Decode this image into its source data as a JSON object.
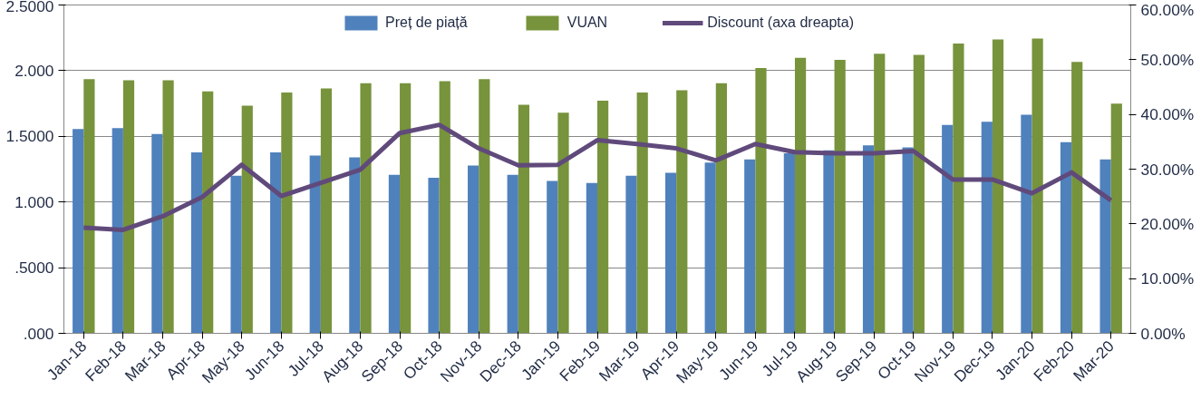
{
  "chart_data": {
    "type": "bar",
    "categories": [
      "Jan-18",
      "Feb-18",
      "Mar-18",
      "Apr-18",
      "May-18",
      "Jun-18",
      "Jul-18",
      "Aug-18",
      "Sep-18",
      "Oct-18",
      "Nov-18",
      "Dec-18",
      "Jan-19",
      "Feb-19",
      "Mar-19",
      "Apr-19",
      "May-19",
      "Jun-19",
      "Jul-19",
      "Aug-19",
      "Sep-19",
      "Oct-19",
      "Nov-19",
      "Dec-19",
      "Jan-20",
      "Feb-20",
      "Mar-20"
    ],
    "series": [
      {
        "name": "Preț de piață",
        "color": "#4f81bd",
        "values": [
          1.556,
          1.563,
          1.517,
          1.378,
          1.2,
          1.378,
          1.354,
          1.339,
          1.207,
          1.184,
          1.277,
          1.207,
          1.161,
          1.145,
          1.2,
          1.223,
          1.3,
          1.324,
          1.37,
          1.393,
          1.432,
          1.416,
          1.587,
          1.61,
          1.664,
          1.455,
          1.324
        ]
      },
      {
        "name": "VUAN",
        "color": "#77933c",
        "values": [
          1.935,
          1.927,
          1.927,
          1.842,
          1.734,
          1.834,
          1.865,
          1.904,
          1.904,
          1.92,
          1.935,
          1.741,
          1.68,
          1.772,
          1.834,
          1.85,
          1.904,
          2.02,
          2.097,
          2.082,
          2.128,
          2.12,
          2.206,
          2.237,
          2.245,
          2.067,
          1.749
        ]
      },
      {
        "name": "Discount (axa dreapta)",
        "type": "line",
        "axis": "y2",
        "color": "#604a7b",
        "values": [
          19.3,
          18.9,
          21.4,
          24.9,
          30.8,
          25.1,
          27.5,
          29.9,
          36.6,
          38.1,
          33.8,
          30.7,
          30.8,
          35.3,
          34.6,
          33.8,
          31.6,
          34.6,
          33.1,
          32.9,
          32.9,
          33.3,
          28.1,
          28.1,
          25.6,
          29.4,
          24.3
        ]
      }
    ],
    "ylim": [
      0,
      2.5
    ],
    "yticks": [
      {
        "value": 0,
        "label": ".000"
      },
      {
        "value": 0.5,
        "label": ".5000"
      },
      {
        "value": 1,
        "label": "1.000"
      },
      {
        "value": 1.5,
        "label": "1.5000"
      },
      {
        "value": 2,
        "label": "2.000"
      },
      {
        "value": 2.5,
        "label": "2.5000"
      }
    ],
    "y2lim": [
      0,
      60
    ],
    "y2ticks": [
      {
        "value": 0,
        "label": "0.00%"
      },
      {
        "value": 10,
        "label": "10.00%"
      },
      {
        "value": 20,
        "label": "20.00%"
      },
      {
        "value": 30,
        "label": "30.00%"
      },
      {
        "value": 40,
        "label": "40.00%"
      },
      {
        "value": 50,
        "label": "50.00%"
      },
      {
        "value": 60,
        "label": "60.00%"
      }
    ],
    "grid": "y",
    "legend": "top",
    "marker": "none",
    "line_style": "solid"
  }
}
